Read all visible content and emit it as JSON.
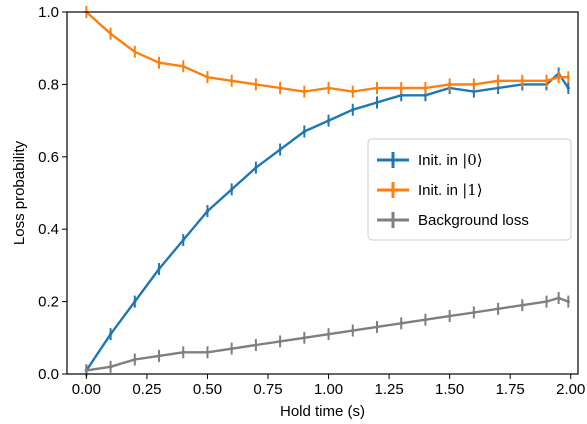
{
  "chart_data": {
    "type": "line",
    "xlabel": "Hold time (s)",
    "ylabel": "Loss probability",
    "xlim": [
      -0.08,
      2.03
    ],
    "ylim": [
      0.0,
      1.0
    ],
    "x_ticks": [
      "0.00",
      "0.25",
      "0.50",
      "0.75",
      "1.00",
      "1.25",
      "1.50",
      "1.75",
      "2.00"
    ],
    "y_ticks": [
      "0.0",
      "0.2",
      "0.4",
      "0.6",
      "0.8",
      "1.0"
    ],
    "grid": false,
    "legend_position": "center-right",
    "series": [
      {
        "name": "Init. in |0⟩",
        "legend_prefix": "Init. in ",
        "legend_math": "|0⟩",
        "color": "#1f77b4",
        "x": [
          0.0,
          0.1,
          0.2,
          0.3,
          0.4,
          0.5,
          0.6,
          0.7,
          0.8,
          0.9,
          1.0,
          1.1,
          1.2,
          1.3,
          1.4,
          1.5,
          1.6,
          1.7,
          1.8,
          1.9,
          1.95,
          1.99
        ],
        "y": [
          0.01,
          0.11,
          0.2,
          0.29,
          0.37,
          0.45,
          0.51,
          0.57,
          0.62,
          0.67,
          0.7,
          0.73,
          0.75,
          0.77,
          0.77,
          0.79,
          0.78,
          0.79,
          0.8,
          0.8,
          0.83,
          0.79
        ]
      },
      {
        "name": "Init. in |1⟩",
        "legend_prefix": "Init. in ",
        "legend_math": "|1⟩",
        "color": "#ff7f0e",
        "x": [
          0.0,
          0.1,
          0.2,
          0.3,
          0.4,
          0.5,
          0.6,
          0.7,
          0.8,
          0.9,
          1.0,
          1.1,
          1.2,
          1.3,
          1.4,
          1.5,
          1.6,
          1.7,
          1.8,
          1.9,
          1.95,
          1.99
        ],
        "y": [
          1.0,
          0.94,
          0.89,
          0.86,
          0.85,
          0.82,
          0.81,
          0.8,
          0.79,
          0.78,
          0.79,
          0.78,
          0.79,
          0.79,
          0.79,
          0.8,
          0.8,
          0.81,
          0.81,
          0.81,
          0.82,
          0.82
        ]
      },
      {
        "name": "Background loss",
        "legend_prefix": "Background loss",
        "legend_math": "",
        "color": "#7f7f7f",
        "x": [
          0.0,
          0.1,
          0.2,
          0.3,
          0.4,
          0.5,
          0.6,
          0.7,
          0.8,
          0.9,
          1.0,
          1.1,
          1.2,
          1.3,
          1.4,
          1.5,
          1.6,
          1.7,
          1.8,
          1.9,
          1.95,
          1.99
        ],
        "y": [
          0.01,
          0.02,
          0.04,
          0.05,
          0.06,
          0.06,
          0.07,
          0.08,
          0.09,
          0.1,
          0.11,
          0.12,
          0.13,
          0.14,
          0.15,
          0.16,
          0.17,
          0.18,
          0.19,
          0.2,
          0.21,
          0.2
        ]
      }
    ]
  }
}
